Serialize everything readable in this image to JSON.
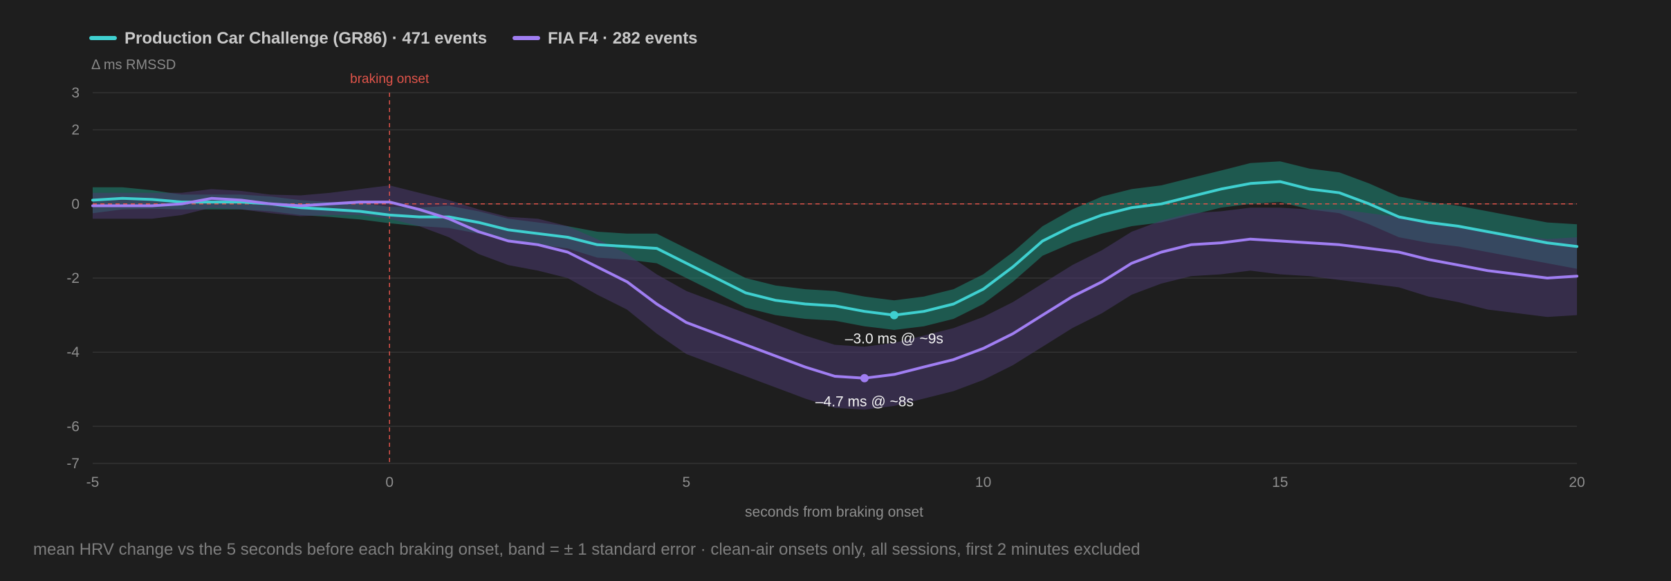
{
  "chart_data": {
    "type": "line",
    "ylabel": "Δ ms RMSSD",
    "xlabel": "seconds from braking onset",
    "caption": "mean HRV change vs the 5 seconds before each braking onset, band = ± 1 standard error · clean-air onsets only, all sessions, first 2 minutes excluded",
    "xlim": [
      -5,
      20
    ],
    "ylim": [
      -7,
      3
    ],
    "x_ticks": [
      -5,
      0,
      5,
      10,
      15,
      20
    ],
    "y_ticks": [
      3,
      2,
      0,
      -2,
      -4,
      -6,
      -7
    ],
    "grid": "horizontal",
    "legend_position": "top-left",
    "reference_lines": [
      {
        "axis": "x",
        "value": 0,
        "label": "braking onset",
        "color": "#e0544a",
        "style": "dashed"
      },
      {
        "axis": "y",
        "value": 0,
        "color": "#e0544a",
        "style": "dashed"
      }
    ],
    "series": [
      {
        "name": "Production Car Challenge (GR86) · 471 events",
        "color": "#3fd0d0",
        "band_color": "#1f8a78",
        "points": [
          [
            -5,
            0.1,
            0.35
          ],
          [
            -4.5,
            0.15,
            0.3
          ],
          [
            -4,
            0.12,
            0.25
          ],
          [
            -3.5,
            0.05,
            0.2
          ],
          [
            -3,
            0.05,
            0.2
          ],
          [
            -2.5,
            0.05,
            0.2
          ],
          [
            -2,
            0.0,
            0.2
          ],
          [
            -1.5,
            -0.1,
            0.2
          ],
          [
            -1,
            -0.15,
            0.2
          ],
          [
            -0.5,
            -0.2,
            0.22
          ],
          [
            0,
            -0.3,
            0.22
          ],
          [
            0.5,
            -0.35,
            0.25
          ],
          [
            1,
            -0.35,
            0.3
          ],
          [
            1.5,
            -0.5,
            0.3
          ],
          [
            2,
            -0.7,
            0.3
          ],
          [
            2.5,
            -0.8,
            0.3
          ],
          [
            3,
            -0.9,
            0.3
          ],
          [
            3.5,
            -1.1,
            0.35
          ],
          [
            4,
            -1.15,
            0.35
          ],
          [
            4.5,
            -1.2,
            0.4
          ],
          [
            5,
            -1.6,
            0.4
          ],
          [
            5.5,
            -2.0,
            0.4
          ],
          [
            6,
            -2.4,
            0.4
          ],
          [
            6.5,
            -2.6,
            0.4
          ],
          [
            7,
            -2.7,
            0.4
          ],
          [
            7.5,
            -2.75,
            0.4
          ],
          [
            8,
            -2.9,
            0.4
          ],
          [
            8.5,
            -3.0,
            0.4
          ],
          [
            9,
            -2.9,
            0.4
          ],
          [
            9.5,
            -2.7,
            0.4
          ],
          [
            10,
            -2.3,
            0.4
          ],
          [
            10.5,
            -1.7,
            0.4
          ],
          [
            11,
            -1.0,
            0.4
          ],
          [
            11.5,
            -0.6,
            0.45
          ],
          [
            12,
            -0.3,
            0.5
          ],
          [
            12.5,
            -0.1,
            0.5
          ],
          [
            13,
            0.0,
            0.5
          ],
          [
            13.5,
            0.2,
            0.5
          ],
          [
            14,
            0.4,
            0.5
          ],
          [
            14.5,
            0.55,
            0.55
          ],
          [
            15,
            0.6,
            0.55
          ],
          [
            15.5,
            0.4,
            0.55
          ],
          [
            16,
            0.3,
            0.55
          ],
          [
            16.5,
            0.0,
            0.55
          ],
          [
            17,
            -0.35,
            0.55
          ],
          [
            17.5,
            -0.5,
            0.55
          ],
          [
            18,
            -0.6,
            0.55
          ],
          [
            18.5,
            -0.75,
            0.55
          ],
          [
            19,
            -0.9,
            0.55
          ],
          [
            19.5,
            -1.05,
            0.55
          ],
          [
            20,
            -1.15,
            0.6
          ]
        ]
      },
      {
        "name": "FIA F4 · 282 events",
        "color": "#a07ef2",
        "band_color": "#4a3a70",
        "points": [
          [
            -5,
            -0.05,
            0.35
          ],
          [
            -4.5,
            -0.05,
            0.35
          ],
          [
            -4,
            -0.05,
            0.35
          ],
          [
            -3.5,
            0.0,
            0.3
          ],
          [
            -3,
            0.15,
            0.25
          ],
          [
            -2.5,
            0.1,
            0.25
          ],
          [
            -2,
            0.0,
            0.25
          ],
          [
            -1.5,
            -0.05,
            0.28
          ],
          [
            -1,
            0.0,
            0.3
          ],
          [
            -0.5,
            0.05,
            0.35
          ],
          [
            0,
            0.05,
            0.45
          ],
          [
            0.5,
            -0.15,
            0.45
          ],
          [
            1,
            -0.4,
            0.5
          ],
          [
            1.5,
            -0.75,
            0.6
          ],
          [
            2,
            -1.0,
            0.65
          ],
          [
            2.5,
            -1.1,
            0.7
          ],
          [
            3,
            -1.3,
            0.7
          ],
          [
            3.5,
            -1.7,
            0.75
          ],
          [
            4,
            -2.1,
            0.75
          ],
          [
            4.5,
            -2.7,
            0.8
          ],
          [
            5,
            -3.2,
            0.85
          ],
          [
            5.5,
            -3.5,
            0.85
          ],
          [
            6,
            -3.8,
            0.85
          ],
          [
            6.5,
            -4.1,
            0.85
          ],
          [
            7,
            -4.4,
            0.85
          ],
          [
            7.5,
            -4.65,
            0.85
          ],
          [
            8,
            -4.7,
            0.85
          ],
          [
            8.5,
            -4.6,
            0.85
          ],
          [
            9,
            -4.4,
            0.85
          ],
          [
            9.5,
            -4.2,
            0.85
          ],
          [
            10,
            -3.9,
            0.85
          ],
          [
            10.5,
            -3.5,
            0.85
          ],
          [
            11,
            -3.0,
            0.85
          ],
          [
            11.5,
            -2.5,
            0.85
          ],
          [
            12,
            -2.1,
            0.85
          ],
          [
            12.5,
            -1.6,
            0.85
          ],
          [
            13,
            -1.3,
            0.85
          ],
          [
            13.5,
            -1.1,
            0.85
          ],
          [
            14,
            -1.05,
            0.85
          ],
          [
            14.5,
            -0.95,
            0.85
          ],
          [
            15,
            -1.0,
            0.9
          ],
          [
            15.5,
            -1.05,
            0.9
          ],
          [
            16,
            -1.1,
            0.95
          ],
          [
            16.5,
            -1.2,
            0.95
          ],
          [
            17,
            -1.3,
            0.95
          ],
          [
            17.5,
            -1.5,
            1.0
          ],
          [
            18,
            -1.65,
            1.0
          ],
          [
            18.5,
            -1.8,
            1.05
          ],
          [
            19,
            -1.9,
            1.05
          ],
          [
            19.5,
            -2.0,
            1.05
          ],
          [
            20,
            -1.95,
            1.05
          ]
        ]
      }
    ],
    "annotations": [
      {
        "series": 0,
        "x": 8.5,
        "y": -3.0,
        "text": "–3.0 ms @ ~9s"
      },
      {
        "series": 1,
        "x": 8,
        "y": -4.7,
        "text": "–4.7 ms @ ~8s"
      }
    ]
  }
}
